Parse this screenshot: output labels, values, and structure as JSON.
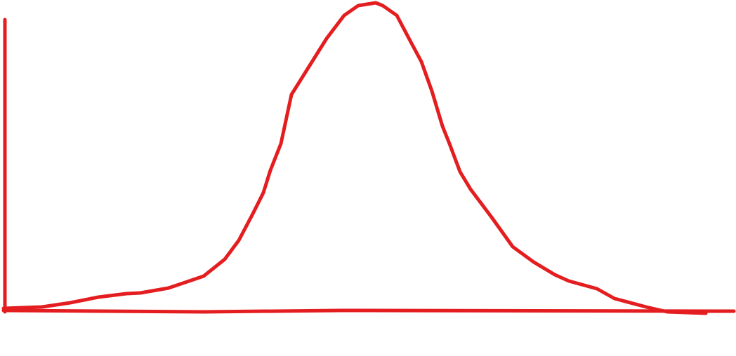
{
  "diagram": {
    "kind": "hand-drawn bell curve",
    "colors": {
      "stroke": "#e41e20",
      "background": "#ffffff"
    }
  }
}
